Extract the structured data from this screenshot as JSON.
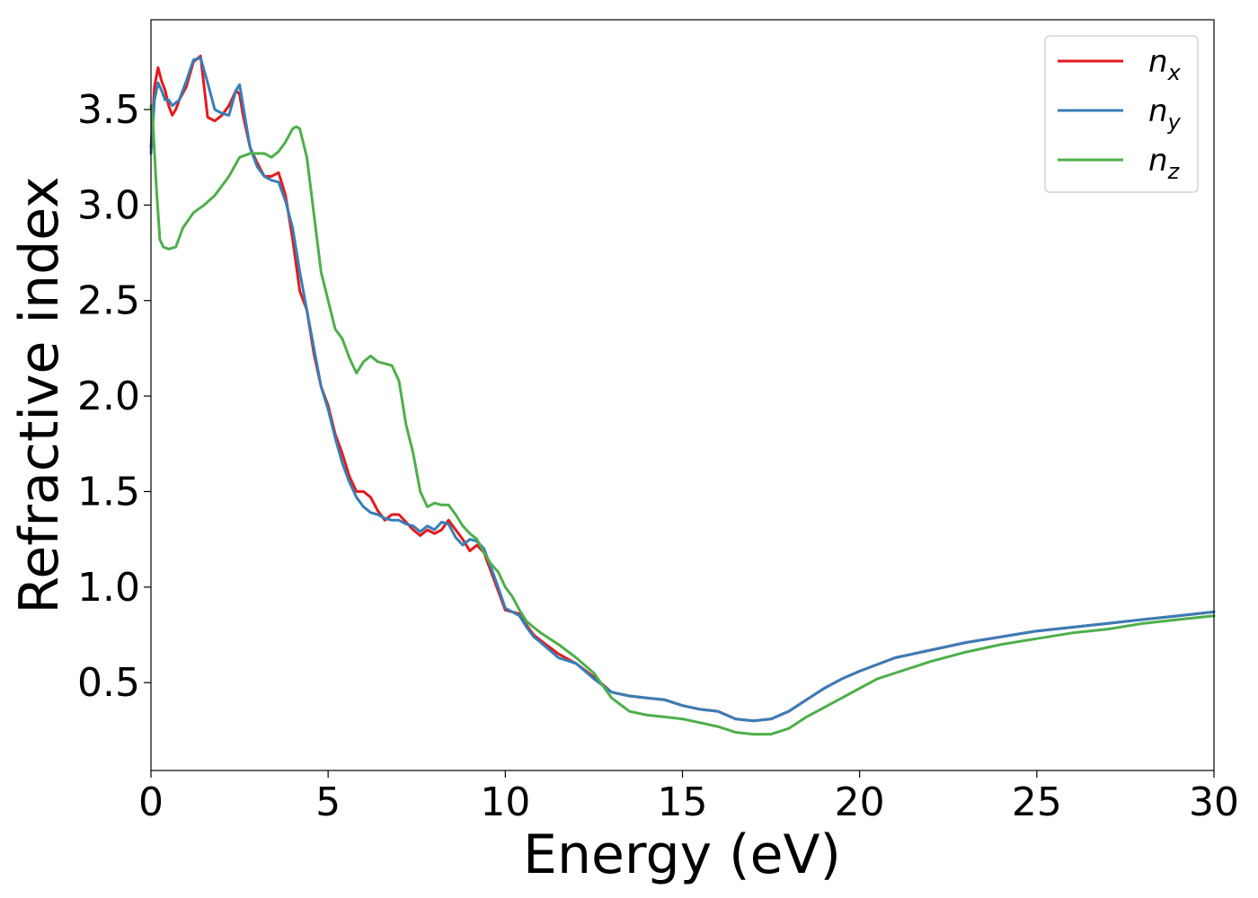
{
  "chart_data": {
    "type": "line",
    "xlabel": "Energy (eV)",
    "ylabel": "Refractive index",
    "xlim": [
      0,
      30
    ],
    "ylim": [
      0.04,
      3.97
    ],
    "xticks": [
      0,
      5,
      10,
      15,
      20,
      25,
      30
    ],
    "xtick_labels": [
      "0",
      "5",
      "10",
      "15",
      "20",
      "25",
      "30"
    ],
    "yticks": [
      0.5,
      1.0,
      1.5,
      2.0,
      2.5,
      3.0,
      3.5
    ],
    "ytick_labels": [
      "0.5",
      "1.0",
      "1.5",
      "2.0",
      "2.5",
      "3.0",
      "3.5"
    ],
    "grid": false,
    "legend_position": "top-right",
    "series": [
      {
        "name": "n",
        "subscript": "x",
        "color": "#e41a1c",
        "x": [
          0.0,
          0.1,
          0.2,
          0.3,
          0.4,
          0.5,
          0.6,
          0.7,
          0.8,
          1.0,
          1.2,
          1.4,
          1.6,
          1.8,
          2.0,
          2.2,
          2.4,
          2.5,
          2.6,
          2.8,
          3.0,
          3.2,
          3.4,
          3.6,
          3.8,
          4.0,
          4.2,
          4.4,
          4.6,
          4.8,
          5.0,
          5.2,
          5.4,
          5.6,
          5.8,
          6.0,
          6.2,
          6.4,
          6.6,
          6.8,
          7.0,
          7.2,
          7.4,
          7.6,
          7.8,
          8.0,
          8.2,
          8.4,
          8.6,
          8.8,
          9.0,
          9.2,
          9.4,
          9.6,
          9.8,
          10.0,
          10.2,
          10.4,
          10.6,
          10.8,
          11.0,
          11.5,
          12.0,
          12.5,
          13.0,
          13.5,
          14.0,
          14.5,
          15.0,
          15.5,
          16.0,
          16.5,
          17.0,
          17.5,
          18.0,
          18.5,
          19.0,
          19.5,
          20.0,
          21.0,
          22.0,
          23.0,
          24.0,
          25.0,
          26.0,
          27.0,
          28.0,
          29.0,
          30.0
        ],
        "y": [
          3.3,
          3.62,
          3.72,
          3.65,
          3.6,
          3.52,
          3.47,
          3.5,
          3.55,
          3.62,
          3.75,
          3.78,
          3.46,
          3.44,
          3.47,
          3.52,
          3.6,
          3.58,
          3.47,
          3.3,
          3.22,
          3.15,
          3.15,
          3.17,
          3.05,
          2.82,
          2.55,
          2.45,
          2.22,
          2.05,
          1.95,
          1.8,
          1.7,
          1.58,
          1.5,
          1.5,
          1.47,
          1.4,
          1.35,
          1.38,
          1.38,
          1.34,
          1.3,
          1.27,
          1.3,
          1.28,
          1.3,
          1.35,
          1.3,
          1.25,
          1.19,
          1.22,
          1.18,
          1.08,
          0.98,
          0.88,
          0.87,
          0.86,
          0.8,
          0.75,
          0.72,
          0.65,
          0.6,
          0.53,
          0.45,
          0.43,
          0.42,
          0.41,
          0.38,
          0.36,
          0.35,
          0.31,
          0.3,
          0.31,
          0.35,
          0.41,
          0.47,
          0.52,
          0.56,
          0.63,
          0.67,
          0.71,
          0.74,
          0.77,
          0.79,
          0.81,
          0.83,
          0.85,
          0.87
        ]
      },
      {
        "name": "n",
        "subscript": "y",
        "color": "#377eb8",
        "x": [
          0.0,
          0.1,
          0.2,
          0.3,
          0.4,
          0.5,
          0.6,
          0.8,
          1.0,
          1.2,
          1.4,
          1.6,
          1.8,
          2.0,
          2.2,
          2.4,
          2.5,
          2.6,
          2.8,
          3.0,
          3.2,
          3.4,
          3.6,
          3.8,
          4.0,
          4.2,
          4.4,
          4.6,
          4.8,
          5.0,
          5.2,
          5.4,
          5.6,
          5.8,
          6.0,
          6.2,
          6.4,
          6.6,
          6.8,
          7.0,
          7.2,
          7.4,
          7.6,
          7.8,
          8.0,
          8.2,
          8.4,
          8.6,
          8.8,
          9.0,
          9.2,
          9.4,
          9.6,
          9.8,
          10.0,
          10.2,
          10.4,
          10.6,
          10.8,
          11.0,
          11.5,
          12.0,
          12.5,
          13.0,
          13.5,
          14.0,
          14.5,
          15.0,
          15.5,
          16.0,
          16.5,
          17.0,
          17.5,
          18.0,
          18.5,
          19.0,
          19.5,
          20.0,
          21.0,
          22.0,
          23.0,
          24.0,
          25.0,
          26.0,
          27.0,
          28.0,
          29.0,
          30.0
        ],
        "y": [
          3.27,
          3.55,
          3.64,
          3.6,
          3.55,
          3.55,
          3.52,
          3.55,
          3.65,
          3.76,
          3.77,
          3.64,
          3.5,
          3.48,
          3.47,
          3.6,
          3.63,
          3.52,
          3.3,
          3.2,
          3.15,
          3.13,
          3.12,
          3.02,
          2.88,
          2.65,
          2.45,
          2.25,
          2.05,
          1.93,
          1.78,
          1.65,
          1.55,
          1.47,
          1.42,
          1.39,
          1.38,
          1.36,
          1.35,
          1.35,
          1.33,
          1.32,
          1.29,
          1.32,
          1.3,
          1.34,
          1.33,
          1.26,
          1.22,
          1.25,
          1.24,
          1.2,
          1.1,
          1.0,
          0.89,
          0.87,
          0.85,
          0.79,
          0.74,
          0.71,
          0.63,
          0.6,
          0.52,
          0.45,
          0.43,
          0.42,
          0.41,
          0.38,
          0.36,
          0.35,
          0.31,
          0.3,
          0.31,
          0.35,
          0.41,
          0.47,
          0.52,
          0.56,
          0.63,
          0.67,
          0.71,
          0.74,
          0.77,
          0.79,
          0.81,
          0.83,
          0.85,
          0.87
        ]
      },
      {
        "name": "n",
        "subscript": "z",
        "color": "#4daf4a",
        "x": [
          0.0,
          0.05,
          0.15,
          0.25,
          0.35,
          0.5,
          0.7,
          0.9,
          1.2,
          1.5,
          1.8,
          2.0,
          2.2,
          2.5,
          2.8,
          3.0,
          3.2,
          3.4,
          3.6,
          3.8,
          4.0,
          4.1,
          4.2,
          4.4,
          4.6,
          4.8,
          5.0,
          5.2,
          5.4,
          5.6,
          5.8,
          6.0,
          6.2,
          6.4,
          6.6,
          6.8,
          7.0,
          7.2,
          7.4,
          7.6,
          7.8,
          8.0,
          8.2,
          8.4,
          8.6,
          8.8,
          9.0,
          9.2,
          9.4,
          9.6,
          9.8,
          10.0,
          10.2,
          10.4,
          10.6,
          10.8,
          11.0,
          11.5,
          12.0,
          12.5,
          13.0,
          13.5,
          14.0,
          14.5,
          15.0,
          15.5,
          16.0,
          16.5,
          17.0,
          17.5,
          18.0,
          18.5,
          19.0,
          19.5,
          20.0,
          20.5,
          21.0,
          22.0,
          23.0,
          24.0,
          25.0,
          26.0,
          27.0,
          28.0,
          29.0,
          30.0
        ],
        "y": [
          3.52,
          3.45,
          3.1,
          2.82,
          2.78,
          2.77,
          2.78,
          2.88,
          2.96,
          3.0,
          3.05,
          3.1,
          3.15,
          3.25,
          3.27,
          3.27,
          3.27,
          3.25,
          3.28,
          3.33,
          3.4,
          3.41,
          3.4,
          3.25,
          2.95,
          2.65,
          2.5,
          2.35,
          2.3,
          2.2,
          2.12,
          2.18,
          2.21,
          2.18,
          2.17,
          2.16,
          2.08,
          1.85,
          1.7,
          1.5,
          1.42,
          1.44,
          1.43,
          1.43,
          1.38,
          1.32,
          1.28,
          1.25,
          1.18,
          1.12,
          1.08,
          1.0,
          0.95,
          0.88,
          0.82,
          0.79,
          0.76,
          0.7,
          0.63,
          0.55,
          0.42,
          0.35,
          0.33,
          0.32,
          0.31,
          0.29,
          0.27,
          0.24,
          0.23,
          0.23,
          0.26,
          0.32,
          0.37,
          0.42,
          0.47,
          0.52,
          0.55,
          0.61,
          0.66,
          0.7,
          0.73,
          0.76,
          0.78,
          0.81,
          0.83,
          0.85
        ]
      }
    ]
  }
}
